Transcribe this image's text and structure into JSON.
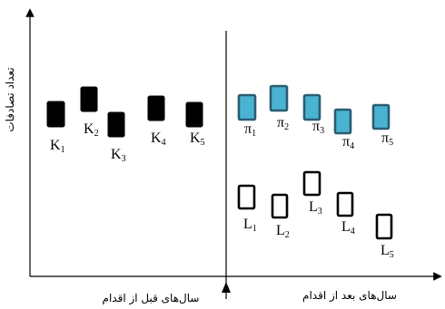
{
  "axes": {
    "y_label": "تعداد تصادفات",
    "x_label_before": "سال‌های قبل از اقدام",
    "x_label_after": "سال‌های بعد از اقدام"
  },
  "groups": [
    {
      "id": "K",
      "style": "solid",
      "fill": "#000000",
      "stroke": "#000000",
      "items": [
        {
          "name": "K",
          "sub": "1"
        },
        {
          "name": "K",
          "sub": "2"
        },
        {
          "name": "K",
          "sub": "3"
        },
        {
          "name": "K",
          "sub": "4"
        },
        {
          "name": "K",
          "sub": "5"
        }
      ]
    },
    {
      "id": "pi",
      "style": "filled",
      "fill": "#4ab3d2",
      "stroke": "#2a5c72",
      "items": [
        {
          "name": "π",
          "sub": "1"
        },
        {
          "name": "π",
          "sub": "2"
        },
        {
          "name": "π",
          "sub": "3"
        },
        {
          "name": "π",
          "sub": "4"
        },
        {
          "name": "π",
          "sub": "5"
        }
      ]
    },
    {
      "id": "L",
      "style": "outline",
      "fill": "#ffffff",
      "stroke": "#000000",
      "items": [
        {
          "name": "L",
          "sub": "1"
        },
        {
          "name": "L",
          "sub": "2"
        },
        {
          "name": "L",
          "sub": "3"
        },
        {
          "name": "L",
          "sub": "4"
        },
        {
          "name": "L",
          "sub": "5"
        }
      ]
    }
  ]
}
